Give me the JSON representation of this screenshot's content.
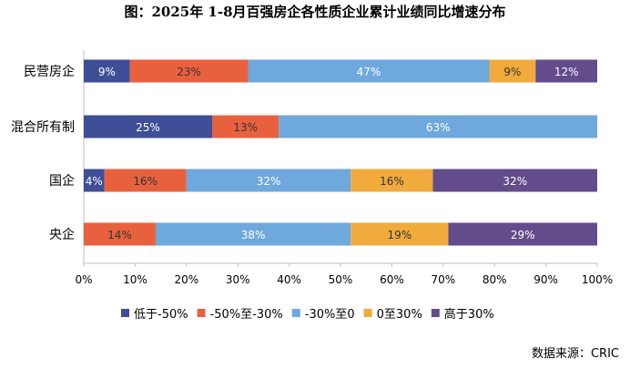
{
  "chart_data": {
    "type": "bar",
    "orientation": "horizontal",
    "stacked": "percent",
    "title": "图：2025年 1-8月百强房企各性质企业累计业绩同比增速分布",
    "categories": [
      "民营房企",
      "混合所有制",
      "国企",
      "央企"
    ],
    "series": [
      {
        "name": "低于-50%",
        "color": "#3E4F97",
        "values": [
          9,
          25,
          4,
          0
        ]
      },
      {
        "name": "-50%至-30%",
        "color": "#E8613F",
        "values": [
          23,
          13,
          16,
          14
        ]
      },
      {
        "name": "-30%至0",
        "color": "#6FA8DC",
        "values": [
          47,
          63,
          32,
          38
        ]
      },
      {
        "name": "0至30%",
        "color": "#F0AB3C",
        "values": [
          9,
          0,
          16,
          19
        ]
      },
      {
        "name": "高于30%",
        "color": "#634C8C",
        "values": [
          12,
          0,
          32,
          29
        ]
      }
    ],
    "xlim": [
      0,
      100
    ],
    "xticks": [
      "0%",
      "10%",
      "20%",
      "30%",
      "40%",
      "50%",
      "60%",
      "70%",
      "80%",
      "90%",
      "100%"
    ],
    "grid": false,
    "legend": "bottom",
    "source": "数据来源：CRIC"
  }
}
